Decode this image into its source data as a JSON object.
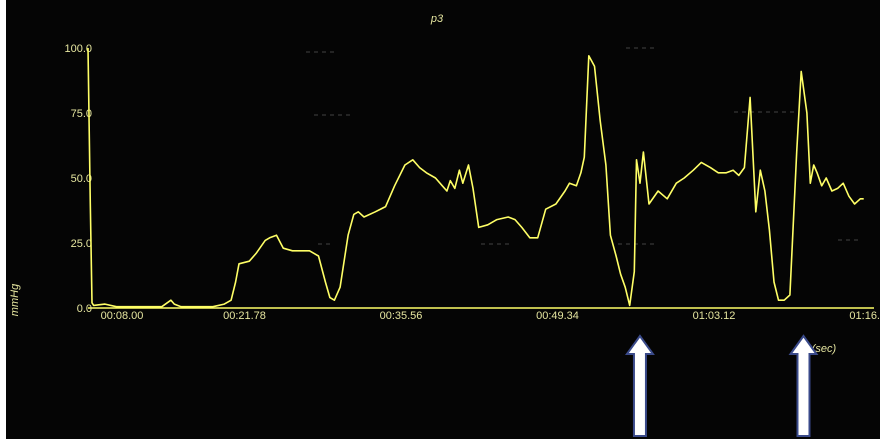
{
  "chart_data": {
    "type": "line",
    "title": "p3",
    "ylabel": "mmHg",
    "xunit": "(sec)",
    "ylim": [
      0,
      100
    ],
    "xlim_seconds": [
      8.0,
      76.68
    ],
    "y_ticks": [
      {
        "value": 0,
        "label": "0.0"
      },
      {
        "value": 25,
        "label": "25.0"
      },
      {
        "value": 50,
        "label": "50.0"
      },
      {
        "value": 75,
        "label": "75.0"
      },
      {
        "value": 100,
        "label": "100.0"
      }
    ],
    "x_ticks": [
      {
        "value": 8.0,
        "label": "00:08.00"
      },
      {
        "value": 21.78,
        "label": "00:21.78"
      },
      {
        "value": 35.56,
        "label": "00:35.56"
      },
      {
        "value": 49.34,
        "label": "00:49.34"
      },
      {
        "value": 63.12,
        "label": "01:03.12"
      },
      {
        "value": 76.68,
        "label": "01:16."
      }
    ],
    "series": [
      {
        "color": "#ffff66",
        "x": [
          8.0,
          8.2,
          8.35,
          8.5,
          9.5,
          10.5,
          11.5,
          13.0,
          14.5,
          15.3,
          15.6,
          16.2,
          17.5,
          19.0,
          20.0,
          20.6,
          21.0,
          21.3,
          22.2,
          22.8,
          23.6,
          24.0,
          24.6,
          25.2,
          26.0,
          27.5,
          28.3,
          28.9,
          29.3,
          29.7,
          30.2,
          30.9,
          31.4,
          31.8,
          32.3,
          33.3,
          34.2,
          35.0,
          35.9,
          36.6,
          37.2,
          37.8,
          38.6,
          39.2,
          39.6,
          39.9,
          40.3,
          40.7,
          41.0,
          41.5,
          41.9,
          42.4,
          43.2,
          44.0,
          45.0,
          45.6,
          46.2,
          46.9,
          47.6,
          48.3,
          49.2,
          50.0,
          50.4,
          51.0,
          51.4,
          51.7,
          52.1,
          52.6,
          53.1,
          53.6,
          54.0,
          54.5,
          54.9,
          55.3,
          55.7,
          56.1,
          56.3,
          56.6,
          56.9,
          57.4,
          58.2,
          59.0,
          59.8,
          60.5,
          61.3,
          62.0,
          62.8,
          63.5,
          64.2,
          64.8,
          65.3,
          65.8,
          66.3,
          66.8,
          67.2,
          67.6,
          68.0,
          68.4,
          68.8,
          69.3,
          69.8,
          70.4,
          70.8,
          71.3,
          71.6,
          71.9,
          72.2,
          72.6,
          73.0,
          73.5,
          74.0,
          74.5,
          75.0,
          75.5,
          76.0,
          76.3
        ],
        "values": [
          100,
          40,
          2,
          1,
          1.5,
          0.5,
          0.5,
          0.5,
          0.5,
          3,
          1.5,
          0.5,
          0.5,
          0.5,
          1.5,
          3,
          10,
          17,
          18,
          21,
          26,
          27,
          28,
          23,
          22,
          22,
          20,
          10,
          4,
          3,
          8,
          28,
          36,
          37,
          35,
          37,
          39,
          47,
          55,
          57,
          54,
          52,
          50,
          47,
          45,
          49,
          46,
          53,
          48,
          55,
          46,
          31,
          32,
          34,
          35,
          34,
          31,
          27,
          27,
          38,
          40,
          45,
          48,
          47,
          52,
          58,
          97,
          93,
          72,
          55,
          28,
          20,
          13,
          8,
          1,
          14,
          57,
          48,
          60,
          40,
          45,
          42,
          48,
          50,
          53,
          56,
          54,
          52,
          52,
          53,
          51,
          54,
          81,
          37,
          53,
          45,
          30,
          10,
          3,
          3,
          5,
          60,
          91,
          75,
          48,
          55,
          52,
          47,
          50,
          45,
          46,
          48,
          43,
          40,
          42,
          42
        ]
      }
    ],
    "annotations": [
      {
        "type": "up-arrow",
        "x": 56.6,
        "label": ""
      },
      {
        "type": "up-arrow",
        "x": 71.0,
        "label": ""
      }
    ]
  },
  "colors": {
    "background": "#050505",
    "trace": "#ffff66",
    "text": "#e6e6a0",
    "arrow_fill": "#ffffff",
    "arrow_stroke": "#3a4a8a"
  }
}
